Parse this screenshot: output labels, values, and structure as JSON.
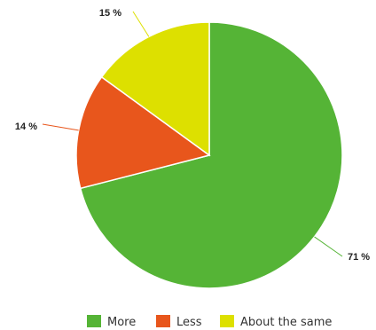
{
  "chart_data": {
    "type": "pie",
    "categories": [
      "More",
      "Less",
      "About the same"
    ],
    "values": [
      71,
      14,
      15
    ],
    "labels": [
      "71 %",
      "14 %",
      "15 %"
    ],
    "colors": [
      "#55b436",
      "#e8561c",
      "#dde000"
    ],
    "legend": "bottom"
  }
}
